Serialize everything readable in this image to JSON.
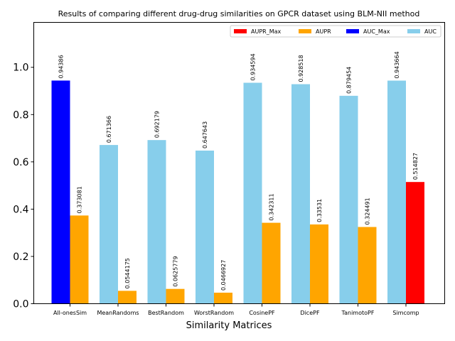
{
  "chart_data": {
    "type": "bar",
    "title": "Results of comparing different drug-drug similarities on GPCR dataset using BLM-NII method",
    "xlabel": "Similarity Matrices",
    "ylabel": "",
    "ylim": [
      0,
      1.19
    ],
    "yticks": [
      "0.0",
      "0.2",
      "0.4",
      "0.6",
      "0.8",
      "1.0"
    ],
    "ytick_values": [
      0,
      0.2,
      0.4,
      0.6,
      0.8,
      1.0
    ],
    "categories": [
      "All-onesSim",
      "MeanRandoms",
      "BestRandom",
      "WorstRandom",
      "CosinePF",
      "DicePF",
      "TanimotoPF",
      "Simcomp"
    ],
    "series": [
      {
        "name": "AUC",
        "color": "#87ceeb",
        "max_color": "#0000ff",
        "max_name": "AUC_Max",
        "values": [
          0.94386,
          0.671366,
          0.692179,
          0.647643,
          0.934594,
          0.928518,
          0.879454,
          0.943664
        ],
        "labels": [
          "0.94386",
          "0.671366",
          "0.692179",
          "0.647643",
          "0.934594",
          "0.928518",
          "0.879454",
          "0.943664"
        ]
      },
      {
        "name": "AUPR",
        "color": "#ffa500",
        "max_color": "#ff0000",
        "max_name": "AUPR_Max",
        "values": [
          0.373081,
          0.0544175,
          0.0625779,
          0.0466927,
          0.342311,
          0.33531,
          0.324491,
          0.514827
        ],
        "labels": [
          "0.373081",
          "0.0544175",
          "0.0625779",
          "0.0466927",
          "0.342311",
          "0.33531",
          "0.324491",
          "0.514827"
        ]
      }
    ],
    "max_index": {
      "AUC": 0,
      "AUPR": 7
    },
    "legend": {
      "position": "top-right",
      "entries": [
        {
          "label": "AUPR_Max",
          "color": "#ff0000"
        },
        {
          "label": "AUPR",
          "color": "#ffa500"
        },
        {
          "label": "AUC_Max",
          "color": "#0000ff"
        },
        {
          "label": "AUC",
          "color": "#87ceeb"
        }
      ]
    }
  }
}
